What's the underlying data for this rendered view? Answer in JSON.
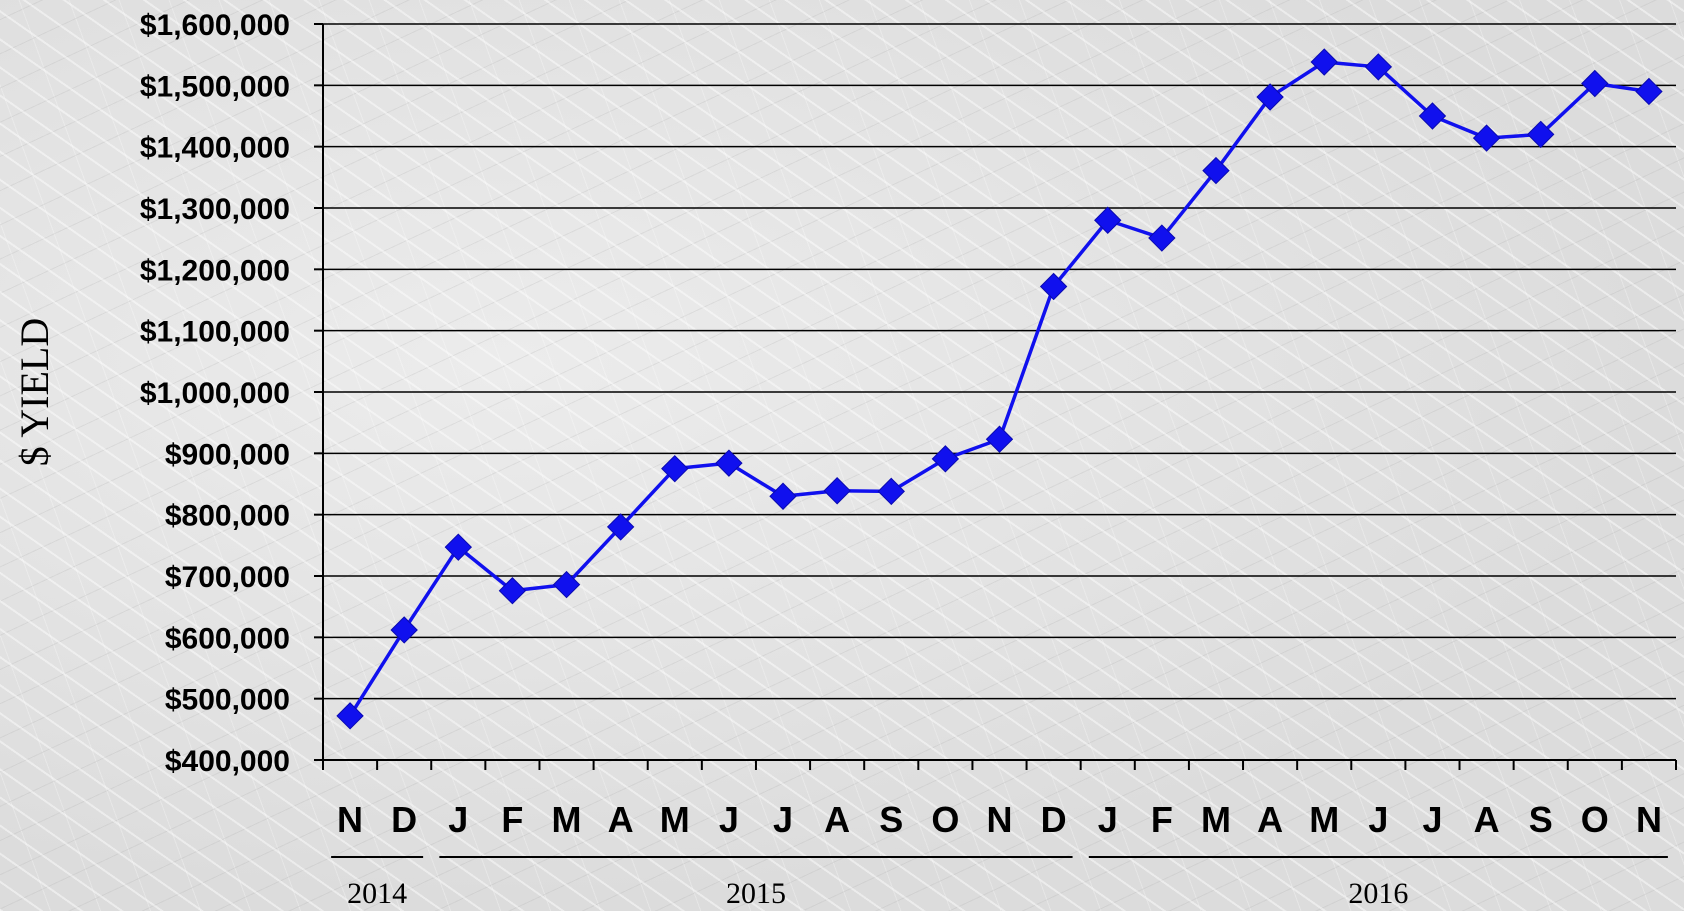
{
  "chart_data": {
    "type": "line",
    "title": "",
    "xlabel": "",
    "ylabel": "$ YIELD",
    "categories": [
      "N",
      "D",
      "J",
      "F",
      "M",
      "A",
      "M",
      "J",
      "J",
      "A",
      "S",
      "O",
      "N",
      "D",
      "J",
      "F",
      "M",
      "A",
      "M",
      "J",
      "J",
      "A",
      "S",
      "O",
      "N"
    ],
    "years": [
      {
        "label": "2014",
        "from": 0,
        "to": 1
      },
      {
        "label": "2015",
        "from": 2,
        "to": 13
      },
      {
        "label": "2016",
        "from": 14,
        "to": 24
      }
    ],
    "series": [
      {
        "name": "",
        "color": "#1010ee",
        "marker": "diamond",
        "values": [
          472000,
          612000,
          747000,
          676000,
          686000,
          780000,
          875000,
          884000,
          830000,
          839000,
          838000,
          891000,
          923000,
          1172000,
          1280000,
          1251000,
          1361000,
          1481000,
          1538000,
          1530000,
          1450000,
          1414000,
          1420000,
          1503000,
          1490000
        ]
      }
    ],
    "yticks": [
      "$400,000",
      "$500,000",
      "$600,000",
      "$700,000",
      "$800,000",
      "$900,000",
      "$1,000,000",
      "$1,100,000",
      "$1,200,000",
      "$1,300,000",
      "$1,400,000",
      "$1,500,000",
      "$1,600,000"
    ],
    "ylim": [
      400000,
      1600000
    ],
    "ystep": 100000,
    "grid": true,
    "legend": "none"
  }
}
